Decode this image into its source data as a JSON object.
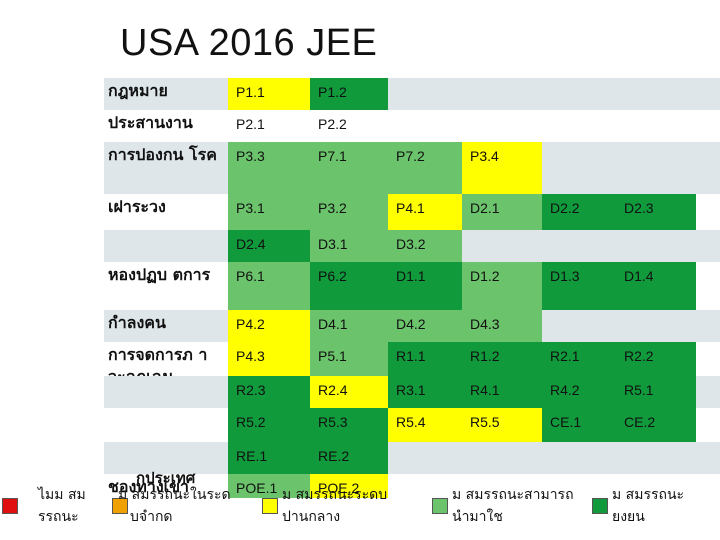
{
  "title": "USA 2016 JEE",
  "colors": {
    "label_bg": "#d9d9d9",
    "row_alt": "#dfe6ea",
    "row_plain": "#ffffff",
    "yellow": "#ffff00",
    "light_green": "#6bc46b",
    "dark_green": "#109a3c",
    "red": "#e01010",
    "orange": "#f0a000"
  },
  "rows": [
    {
      "label": "กฎหมาย",
      "cells": [
        {
          "t": "P1.1",
          "c": "yellow"
        },
        {
          "t": "P1.2",
          "c": "dark_green"
        }
      ]
    },
    {
      "label": "ประสานงาน",
      "cells": [
        {
          "t": "P2.1",
          "c": "none"
        },
        {
          "t": "P2.2",
          "c": "none"
        }
      ]
    },
    {
      "label": "การปองกน โรค",
      "cells": [
        {
          "t": "P3.3",
          "c": "light_green"
        },
        {
          "t": "P7.1",
          "c": "light_green"
        },
        {
          "t": "P7.2",
          "c": "light_green"
        },
        {
          "t": "P3.4",
          "c": "yellow"
        }
      ]
    },
    {
      "label": "เฝาระวง",
      "cells": [
        {
          "t": "P3.1",
          "c": "light_green"
        },
        {
          "t": "P3.2",
          "c": "light_green"
        },
        {
          "t": "P4.1",
          "c": "yellow"
        },
        {
          "t": "D2.1",
          "c": "light_green"
        },
        {
          "t": "D2.2",
          "c": "dark_green"
        },
        {
          "t": "D2.3",
          "c": "dark_green"
        }
      ]
    },
    {
      "label": "",
      "cells": [
        {
          "t": "D2.4",
          "c": "dark_green"
        },
        {
          "t": "D3.1",
          "c": "light_green"
        },
        {
          "t": "D3.2",
          "c": "light_green"
        }
      ]
    },
    {
      "label": "หองปฏบ ตการ",
      "cells": [
        {
          "t": "P6.1",
          "c": "light_green"
        },
        {
          "t": "P6.2",
          "c": "dark_green"
        },
        {
          "t": "D1.1",
          "c": "dark_green"
        },
        {
          "t": "D1.2",
          "c": "light_green"
        },
        {
          "t": "D1.3",
          "c": "dark_green"
        },
        {
          "t": "D1.4",
          "c": "dark_green"
        }
      ]
    },
    {
      "label": "กำลงคน",
      "cells": [
        {
          "t": "P4.2",
          "c": "yellow"
        },
        {
          "t": "D4.1",
          "c": "light_green"
        },
        {
          "t": "D4.2",
          "c": "light_green"
        },
        {
          "t": "D4.3",
          "c": "light_green"
        }
      ]
    },
    {
      "label": "การจดการภ าวะฉกเฉน",
      "cells": [
        {
          "t": "P4.3",
          "c": "yellow"
        },
        {
          "t": "P5.1",
          "c": "light_green"
        },
        {
          "t": "R1.1",
          "c": "dark_green"
        },
        {
          "t": "R1.2",
          "c": "dark_green"
        },
        {
          "t": "R2.1",
          "c": "dark_green"
        },
        {
          "t": "R2.2",
          "c": "dark_green"
        }
      ]
    },
    {
      "label": "",
      "cells": [
        {
          "t": "R2.3",
          "c": "dark_green"
        },
        {
          "t": "R2.4",
          "c": "yellow"
        },
        {
          "t": "R3.1",
          "c": "dark_green"
        },
        {
          "t": "R4.1",
          "c": "dark_green"
        },
        {
          "t": "R4.2",
          "c": "dark_green"
        },
        {
          "t": "R5.1",
          "c": "dark_green"
        }
      ]
    },
    {
      "label": "",
      "cells": [
        {
          "t": "R5.2",
          "c": "dark_green"
        },
        {
          "t": "R5.3",
          "c": "dark_green"
        },
        {
          "t": "R5.4",
          "c": "yellow"
        },
        {
          "t": "R5.5",
          "c": "yellow"
        },
        {
          "t": "CE.1",
          "c": "dark_green"
        },
        {
          "t": "CE.2",
          "c": "dark_green"
        }
      ]
    },
    {
      "label": "",
      "cells": [
        {
          "t": "RE.1",
          "c": "dark_green"
        },
        {
          "t": "RE.2",
          "c": "dark_green"
        }
      ]
    },
    {
      "label": "ชองทางเขา",
      "cells": [
        {
          "t": "POE.1",
          "c": "light_green"
        },
        {
          "t": "POE.2",
          "c": "yellow"
        }
      ]
    }
  ],
  "legend": [
    {
      "line1": "ไมม สม",
      "line2": "รรถนะ",
      "color": "red"
    },
    {
      "line1": "ม สมรรถนะในระด",
      "line2": "บจำกด",
      "color": "orange"
    },
    {
      "line1": "ม สมรรถนะระดบ",
      "line2": "ปานกลาง",
      "color": "yellow"
    },
    {
      "line1": "ม สมรรถนะสามารถ",
      "line2": "นำมาใช",
      "color": "light_green"
    },
    {
      "line1": "ม สมรรถนะ",
      "line2": "ยงยน",
      "color": "dark_green"
    }
  ],
  "legend_overlay_text": "กประเทศ"
}
